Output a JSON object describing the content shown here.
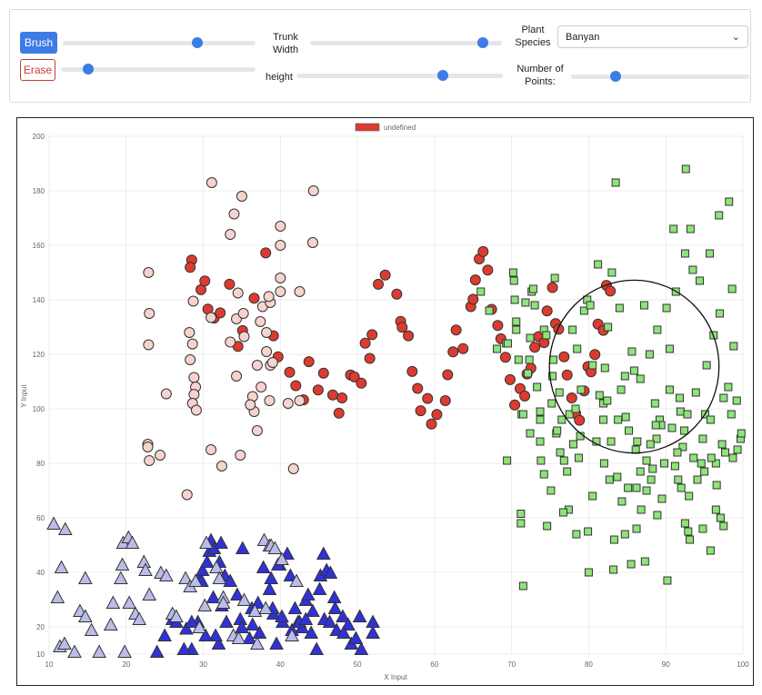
{
  "controls": {
    "brush_label": "Brush",
    "erase_label": "Erase",
    "trunk_width_label": "Trunk Width",
    "height_label": "height",
    "plant_species_label": "Plant Species",
    "species_value": "Banyan",
    "num_points_label": "Number of Points:",
    "brush_size": 0.7,
    "erase_size": 0.14,
    "trunk_width": 0.9,
    "height": 0.71,
    "num_points": 0.25
  },
  "chart_data": {
    "type": "scatter",
    "legend": {
      "label": "undefined",
      "placement": "top-center",
      "color": "#dd3b2f"
    },
    "xlabel": "X Input",
    "ylabel": "Y Input",
    "xlim": [
      10,
      100
    ],
    "ylim": [
      10,
      200
    ],
    "xticks": [
      "10",
      "20",
      "30",
      "40",
      "50",
      "60",
      "70",
      "80",
      "90",
      "100"
    ],
    "yticks": [
      "10",
      "20",
      "40",
      "60",
      "80",
      "100",
      "120",
      "140",
      "160",
      "180",
      "200"
    ],
    "grid": true,
    "brush_circle": {
      "cx": 85.9,
      "cy": 115.5,
      "r_x": 11
    },
    "series": [
      {
        "marker": "circle",
        "fill": "#dd3b2f",
        "points": [
          [
            28.5,
            154.6
          ],
          [
            28.3,
            151.9
          ],
          [
            29.7,
            143.7
          ],
          [
            30.2,
            146.9
          ],
          [
            30.6,
            136.6
          ],
          [
            31.4,
            133.3
          ],
          [
            32.2,
            135.2
          ],
          [
            33.4,
            145.7
          ],
          [
            34.5,
            122.9
          ],
          [
            35.1,
            128.7
          ],
          [
            36.6,
            140.6
          ],
          [
            38.1,
            157.2
          ],
          [
            39.1,
            126.8
          ],
          [
            39.7,
            119.1
          ],
          [
            41.2,
            113.4
          ],
          [
            42.0,
            108.5
          ],
          [
            43.0,
            103.3
          ],
          [
            43.7,
            117.3
          ],
          [
            44.9,
            106.9
          ],
          [
            45.6,
            113.1
          ],
          [
            46.8,
            105.1
          ],
          [
            47.6,
            98.4
          ],
          [
            48.0,
            104.0
          ],
          [
            49.1,
            112.4
          ],
          [
            49.6,
            111.7
          ],
          [
            50.5,
            109.4
          ],
          [
            51.0,
            124.1
          ],
          [
            51.6,
            118.5
          ],
          [
            51.9,
            127.2
          ],
          [
            52.7,
            145.7
          ],
          [
            53.6,
            149.1
          ],
          [
            55.1,
            142.1
          ],
          [
            55.6,
            132.1
          ],
          [
            55.8,
            129.9
          ],
          [
            56.6,
            126.8
          ],
          [
            57.1,
            113.7
          ],
          [
            57.8,
            107.5
          ],
          [
            58.2,
            99.3
          ],
          [
            59.1,
            103.8
          ],
          [
            59.6,
            94.4
          ],
          [
            60.3,
            97.9
          ],
          [
            61.4,
            103.0
          ],
          [
            61.7,
            112.5
          ],
          [
            62.4,
            120.9
          ],
          [
            62.8,
            128.9
          ],
          [
            63.7,
            122.1
          ],
          [
            64.7,
            137.5
          ],
          [
            65.0,
            140.2
          ],
          [
            65.3,
            147.3
          ],
          [
            65.8,
            155.0
          ],
          [
            66.3,
            157.7
          ],
          [
            66.9,
            150.9
          ],
          [
            67.4,
            136.5
          ],
          [
            68.2,
            130.6
          ],
          [
            68.6,
            125.7
          ],
          [
            69.2,
            118.9
          ],
          [
            69.8,
            110.7
          ],
          [
            70.4,
            101.4
          ],
          [
            71.1,
            107.4
          ],
          [
            71.7,
            104.7
          ],
          [
            72.0,
            112.8
          ],
          [
            72.5,
            114.9
          ],
          [
            73.0,
            122.6
          ],
          [
            73.5,
            126.5
          ],
          [
            74.2,
            124.3
          ],
          [
            74.6,
            135.9
          ],
          [
            75.3,
            144.5
          ],
          [
            75.7,
            131.3
          ],
          [
            76.1,
            129.2
          ],
          [
            76.8,
            119.1
          ],
          [
            77.2,
            112.4
          ],
          [
            77.8,
            104.0
          ],
          [
            78.3,
            98.3
          ],
          [
            78.8,
            95.8
          ],
          [
            79.4,
            106.6
          ],
          [
            79.9,
            115.5
          ],
          [
            80.3,
            113.6
          ],
          [
            80.8,
            119.9
          ],
          [
            81.2,
            131.1
          ],
          [
            81.9,
            128.8
          ],
          [
            82.3,
            145.3
          ],
          [
            82.8,
            143.2
          ]
        ]
      },
      {
        "marker": "circle",
        "fill": "#f6d3cf",
        "points": []
      },
      {
        "marker": "square",
        "fill": "#8ee37a",
        "points": []
      },
      {
        "marker": "triangle",
        "fill": "#3131d8",
        "points": []
      },
      {
        "marker": "triangle",
        "fill": "#babde9",
        "points": []
      }
    ]
  }
}
